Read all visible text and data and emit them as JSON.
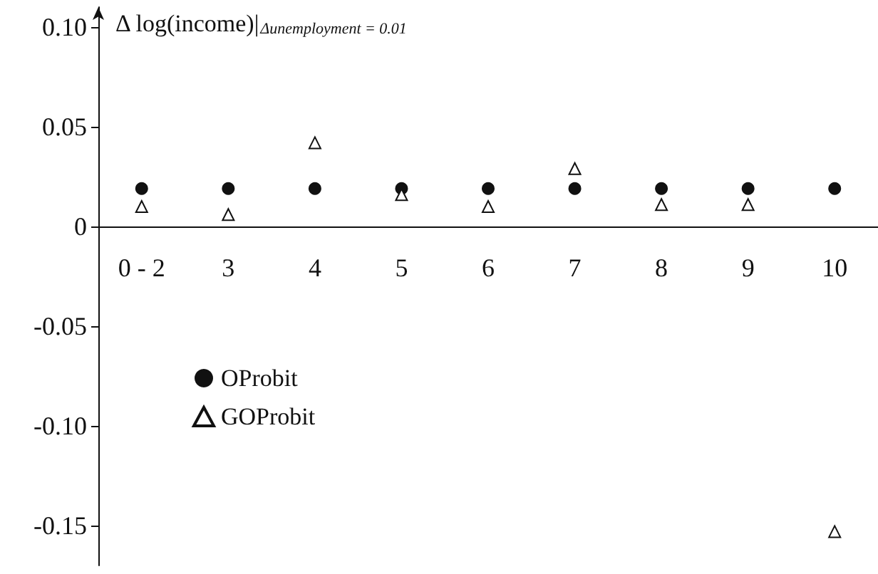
{
  "chart_data": {
    "type": "scatter",
    "ylabel": "Δ log(income)|$_{Δunemployment = 0.01}$",
    "categories": [
      "0 - 2",
      "3",
      "4",
      "5",
      "6",
      "7",
      "8",
      "9",
      "10"
    ],
    "series": [
      {
        "name": "OProbit",
        "color": "#111111",
        "marker": "circle",
        "values": [
          0.019,
          0.019,
          0.019,
          0.019,
          0.019,
          0.019,
          0.019,
          0.019,
          0.019
        ]
      },
      {
        "name": "GOProbit",
        "color": "#111111",
        "marker": "triangle",
        "values": [
          0.01,
          0.006,
          0.042,
          0.016,
          0.01,
          0.029,
          0.011,
          0.011,
          -0.153
        ]
      }
    ],
    "ylim": [
      -0.17,
      0.11
    ],
    "yticks": [
      {
        "value": 0.1,
        "label": "0.10"
      },
      0.05,
      0,
      -0.05,
      {
        "value": -0.1,
        "label": "-0.10"
      },
      -0.15
    ],
    "grid": false,
    "legend": "left"
  }
}
